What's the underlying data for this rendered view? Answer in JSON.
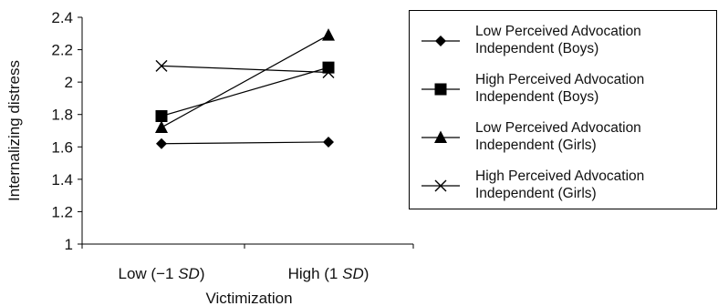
{
  "chart_data": {
    "type": "line",
    "categories_parts": [
      [
        "Low (−1 ",
        "SD",
        ")"
      ],
      [
        "High (1 ",
        "SD",
        ")"
      ]
    ],
    "xlabel": "Victimization",
    "ylabel": "Internalizing distress",
    "ylim": [
      1,
      2.4
    ],
    "yticks": [
      "1",
      "1.2",
      "1.4",
      "1.6",
      "1.8",
      "2",
      "2.2",
      "2.4"
    ],
    "grid": false,
    "legend_position": "right",
    "series": [
      {
        "name_lines": [
          "Low Perceived Advocation",
          "Independent (Boys)"
        ],
        "marker": "diamond",
        "values": [
          1.62,
          1.63
        ]
      },
      {
        "name_lines": [
          "High Perceived Advocation",
          "Independent (Boys)"
        ],
        "marker": "square",
        "values": [
          1.79,
          2.09
        ]
      },
      {
        "name_lines": [
          "Low Perceived Advocation",
          "Independent (Girls)"
        ],
        "marker": "triangle",
        "values": [
          1.72,
          2.29
        ]
      },
      {
        "name_lines": [
          "High Perceived Advocation",
          "Independent (Girls)"
        ],
        "marker": "x",
        "values": [
          2.1,
          2.06
        ]
      }
    ]
  }
}
